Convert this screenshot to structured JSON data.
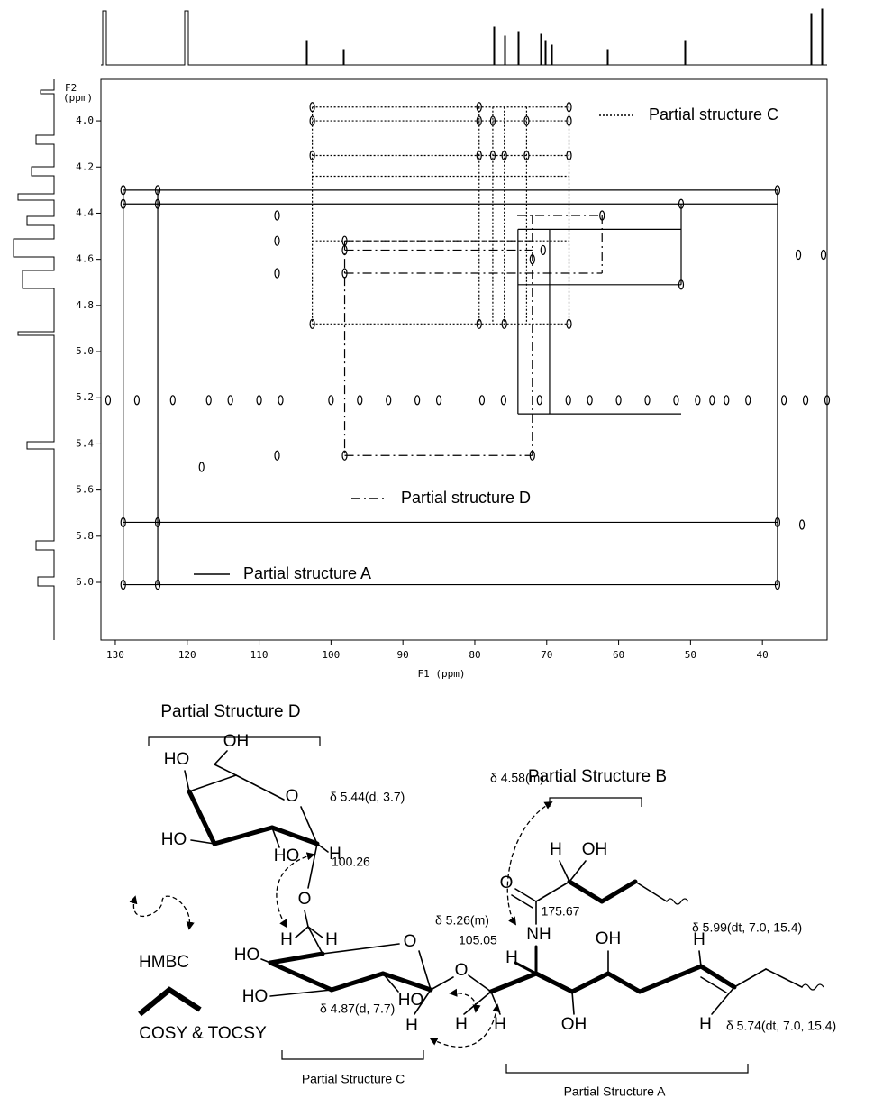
{
  "chart_data": {
    "type": "contour",
    "x_label": "F1 (ppm)",
    "y_label": [
      "F2",
      "(ppm)"
    ],
    "xlim": [
      132,
      31
    ],
    "ylim": [
      3.82,
      6.25
    ],
    "xticks": [
      130,
      120,
      110,
      100,
      90,
      80,
      70,
      60,
      50,
      40
    ],
    "yticks": [
      {
        "value": 4,
        "label": "4.0"
      },
      4.2,
      4.4,
      4.6,
      4.8,
      {
        "value": 5,
        "label": "5.0"
      },
      5.2,
      5.4,
      5.6,
      5.8,
      {
        "value": 6,
        "label": "6.0"
      }
    ],
    "color": "#000000",
    "series": [
      {
        "name": "Partial structure C",
        "dash": "dotted",
        "segments": [
          [
            102.6,
            3.94,
            66.9,
            3.94
          ],
          [
            102.6,
            4.0,
            66.9,
            4.0
          ],
          [
            102.6,
            4.15,
            66.9,
            4.15
          ],
          [
            102.6,
            4.24,
            66.9,
            4.24
          ],
          [
            102.6,
            4.52,
            66.9,
            4.52
          ],
          [
            102.6,
            4.88,
            66.9,
            4.88
          ],
          [
            102.6,
            3.94,
            102.6,
            4.88
          ],
          [
            79.4,
            3.94,
            79.4,
            4.88
          ],
          [
            77.5,
            3.94,
            77.5,
            4.88
          ],
          [
            75.9,
            3.94,
            75.9,
            4.88
          ],
          [
            72.8,
            3.94,
            72.8,
            4.88
          ],
          [
            66.9,
            3.94,
            66.9,
            4.88
          ]
        ]
      },
      {
        "name": "Partial structure D",
        "dash": "dashdot",
        "segments": [
          [
            98.1,
            4.52,
            72.0,
            4.52
          ],
          [
            98.1,
            4.56,
            72.0,
            4.56
          ],
          [
            98.1,
            4.66,
            62.3,
            4.66
          ],
          [
            74.1,
            4.41,
            62.3,
            4.41
          ],
          [
            98.1,
            5.45,
            72.0,
            5.45
          ],
          [
            98.1,
            4.52,
            98.1,
            5.45
          ],
          [
            72.0,
            4.41,
            72.0,
            5.45
          ],
          [
            62.3,
            4.41,
            62.3,
            4.66
          ]
        ]
      },
      {
        "name": "Partial structure A",
        "dash": "solid",
        "segments": [
          [
            128.9,
            4.3,
            37.9,
            4.3
          ],
          [
            128.9,
            4.36,
            37.9,
            4.36
          ],
          [
            128.9,
            5.74,
            37.9,
            5.74
          ],
          [
            128.9,
            6.01,
            37.9,
            6.01
          ],
          [
            128.9,
            4.3,
            128.9,
            6.01
          ],
          [
            124.1,
            4.3,
            124.1,
            6.01
          ],
          [
            37.9,
            4.3,
            37.9,
            6.01
          ],
          [
            74.0,
            4.47,
            51.3,
            4.47
          ],
          [
            74.0,
            4.71,
            51.3,
            4.71
          ],
          [
            74.0,
            5.27,
            51.3,
            5.27
          ],
          [
            74.0,
            4.47,
            74.0,
            5.27
          ],
          [
            69.6,
            4.47,
            69.6,
            5.27
          ],
          [
            51.3,
            4.36,
            51.3,
            4.71
          ]
        ]
      }
    ],
    "peaks": [
      [
        128.9,
        4.3
      ],
      [
        128.9,
        4.36
      ],
      [
        124.1,
        4.3
      ],
      [
        124.1,
        4.36
      ],
      [
        128.9,
        5.74
      ],
      [
        124.1,
        5.74
      ],
      [
        128.9,
        6.01
      ],
      [
        124.1,
        6.01
      ],
      [
        37.9,
        4.3
      ],
      [
        37.9,
        5.74
      ],
      [
        37.9,
        6.01
      ],
      [
        34.5,
        5.75
      ],
      [
        102.6,
        3.94
      ],
      [
        102.6,
        4.0
      ],
      [
        102.6,
        4.15
      ],
      [
        102.6,
        4.88
      ],
      [
        79.4,
        3.94
      ],
      [
        79.4,
        4.0
      ],
      [
        79.4,
        4.15
      ],
      [
        79.4,
        4.88
      ],
      [
        77.5,
        4.0
      ],
      [
        77.5,
        4.15
      ],
      [
        75.9,
        4.15
      ],
      [
        75.9,
        4.88
      ],
      [
        72.8,
        4.0
      ],
      [
        72.8,
        4.15
      ],
      [
        66.9,
        3.94
      ],
      [
        66.9,
        4.0
      ],
      [
        66.9,
        4.15
      ],
      [
        66.9,
        4.88
      ],
      [
        98.1,
        4.52
      ],
      [
        98.1,
        4.56
      ],
      [
        98.1,
        4.66
      ],
      [
        98.1,
        5.45
      ],
      [
        72.0,
        5.45
      ],
      [
        62.3,
        4.41
      ],
      [
        72.0,
        4.6
      ],
      [
        107.5,
        4.41
      ],
      [
        107.5,
        4.52
      ],
      [
        107.5,
        4.66
      ],
      [
        51.3,
        4.36
      ],
      [
        51.3,
        4.71
      ],
      [
        70.5,
        4.56
      ],
      [
        35,
        4.58
      ],
      [
        31.5,
        4.58
      ],
      [
        107.5,
        5.45
      ],
      [
        118,
        5.5
      ],
      [
        131,
        5.21
      ],
      [
        127,
        5.21
      ],
      [
        122,
        5.21
      ],
      [
        117,
        5.21
      ],
      [
        114,
        5.21
      ],
      [
        110,
        5.21
      ],
      [
        107,
        5.21
      ],
      [
        100,
        5.21
      ],
      [
        96,
        5.21
      ],
      [
        92,
        5.21
      ],
      [
        88,
        5.21
      ],
      [
        85,
        5.21
      ],
      [
        79,
        5.21
      ],
      [
        76,
        5.21
      ],
      [
        71,
        5.21
      ],
      [
        67,
        5.21
      ],
      [
        64,
        5.21
      ],
      [
        60,
        5.21
      ],
      [
        56,
        5.21
      ],
      [
        52,
        5.21
      ],
      [
        49,
        5.21
      ],
      [
        47,
        5.21
      ],
      [
        45,
        5.21
      ],
      [
        42,
        5.21
      ],
      [
        37,
        5.21
      ],
      [
        34,
        5.21
      ],
      [
        31,
        5.21
      ]
    ]
  },
  "structure": {
    "labels": [
      "Partial Structure D",
      "HO",
      "OH",
      "O",
      "δ 5.44(d, 3.7)",
      "H",
      "HO",
      "HO",
      "100.26",
      "O",
      "H",
      "H",
      "Partial Structure B",
      "δ 4.58(m)",
      "H",
      "OH",
      "O",
      "175.67",
      "δ 5.26(m)",
      "NH",
      "OH",
      "H",
      "δ 5.99(dt, 7.0, 15.4)",
      "HMBC",
      "HO",
      "O",
      "105.05",
      "O",
      "HO",
      "HO",
      "H",
      "H",
      "H",
      "OH",
      "H",
      "δ 5.74(dt, 7.0, 15.4)",
      "COSY & TOCSY",
      "δ 4.87(d, 7.7)",
      "Partial Structure C",
      "Partial Structure A",
      "H"
    ]
  }
}
